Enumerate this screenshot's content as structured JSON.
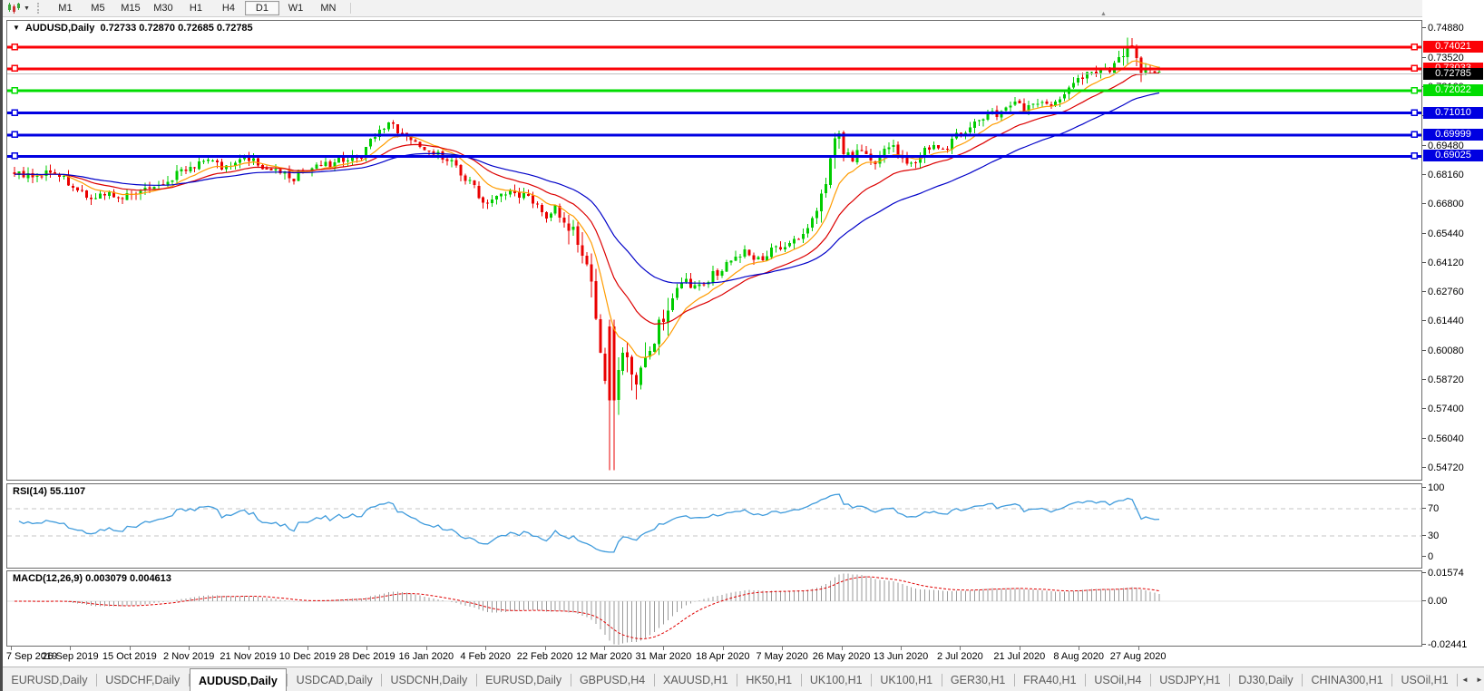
{
  "toolbar": {
    "dropdown_caret": "▼",
    "timeframes": [
      "M1",
      "M5",
      "M15",
      "M30",
      "H1",
      "H4",
      "D1",
      "W1",
      "MN"
    ],
    "active_timeframe": "D1"
  },
  "main_chart": {
    "context_arrow": "▼",
    "title": "AUDUSD,Daily",
    "ohlc_text": "0.72733 0.72870 0.72685 0.72785",
    "shift_marker": "▲",
    "price_axis_ticks": [
      "0.74880",
      "0.73520",
      "0.72160",
      "0.70840",
      "0.69480",
      "0.68160",
      "0.66800",
      "0.65440",
      "0.64120",
      "0.62760",
      "0.61440",
      "0.60080",
      "0.58720",
      "0.57400",
      "0.56040",
      "0.54720"
    ],
    "horizontal_lines": [
      {
        "price": 0.74021,
        "label": "0.74021",
        "color": "#fb0207",
        "thickness": 3
      },
      {
        "price": 0.73033,
        "label": "0.73033",
        "color": "#fb0207",
        "thickness": 3
      },
      {
        "price": 0.72022,
        "label": "0.72022",
        "color": "#00dc00",
        "thickness": 3
      },
      {
        "price": 0.7101,
        "label": "0.71010",
        "color": "#0000e1",
        "thickness": 3
      },
      {
        "price": 0.69999,
        "label": "0.69999",
        "color": "#0000e1",
        "thickness": 3
      },
      {
        "price": 0.69025,
        "label": "0.69025",
        "color": "#0000e1",
        "thickness": 3
      }
    ],
    "bid_line": {
      "price": 0.72785,
      "label": "0.72785",
      "line_color": "#c0c0c0",
      "label_bg": "#000000"
    }
  },
  "chart_data": {
    "type": "candlestick",
    "symbol": "AUDUSD",
    "timeframe": "Daily",
    "last_ohlc": {
      "open": 0.72733,
      "high": 0.7287,
      "low": 0.72685,
      "close": 0.72785
    },
    "visible_price_range": [
      0.5408,
      0.7525
    ],
    "up_color": "#00cc00",
    "down_color": "#ea0000",
    "price_path_keypoints": [
      [
        8,
        0.683
      ],
      [
        30,
        0.679
      ],
      [
        45,
        0.684
      ],
      [
        60,
        0.68
      ],
      [
        75,
        0.676
      ],
      [
        95,
        0.671
      ],
      [
        110,
        0.674
      ],
      [
        125,
        0.67
      ],
      [
        140,
        0.673
      ],
      [
        160,
        0.6745
      ],
      [
        180,
        0.68
      ],
      [
        200,
        0.684
      ],
      [
        218,
        0.687
      ],
      [
        237,
        0.6855
      ],
      [
        255,
        0.689
      ],
      [
        270,
        0.688
      ],
      [
        285,
        0.682
      ],
      [
        300,
        0.684
      ],
      [
        313,
        0.68
      ],
      [
        330,
        0.683
      ],
      [
        345,
        0.685
      ],
      [
        360,
        0.6865
      ],
      [
        375,
        0.69
      ],
      [
        391,
        0.691
      ],
      [
        402,
        0.698
      ],
      [
        415,
        0.703
      ],
      [
        425,
        0.704
      ],
      [
        435,
        0.7
      ],
      [
        448,
        0.696
      ],
      [
        462,
        0.693
      ],
      [
        475,
        0.69
      ],
      [
        490,
        0.687
      ],
      [
        505,
        0.68
      ],
      [
        520,
        0.672
      ],
      [
        528,
        0.669
      ],
      [
        540,
        0.67
      ],
      [
        555,
        0.674
      ],
      [
        570,
        0.672
      ],
      [
        582,
        0.668
      ],
      [
        593,
        0.663
      ],
      [
        603,
        0.666
      ],
      [
        615,
        0.661
      ],
      [
        625,
        0.652
      ],
      [
        635,
        0.645
      ],
      [
        645,
        0.628
      ],
      [
        655,
        0.6
      ],
      [
        665,
        0.578
      ],
      [
        672,
        0.588
      ],
      [
        678,
        0.603
      ],
      [
        685,
        0.595
      ],
      [
        692,
        0.582
      ],
      [
        698,
        0.59
      ],
      [
        706,
        0.602
      ],
      [
        715,
        0.609
      ],
      [
        724,
        0.612
      ],
      [
        735,
        0.625
      ],
      [
        745,
        0.635
      ],
      [
        755,
        0.628
      ],
      [
        768,
        0.632
      ],
      [
        780,
        0.636
      ],
      [
        790,
        0.638
      ],
      [
        800,
        0.643
      ],
      [
        812,
        0.646
      ],
      [
        822,
        0.641
      ],
      [
        835,
        0.644
      ],
      [
        845,
        0.647
      ],
      [
        855,
        0.647
      ],
      [
        865,
        0.652
      ],
      [
        878,
        0.655
      ],
      [
        890,
        0.664
      ],
      [
        900,
        0.675
      ],
      [
        908,
        0.692
      ],
      [
        915,
        0.7
      ],
      [
        922,
        0.692
      ],
      [
        930,
        0.688
      ],
      [
        938,
        0.693
      ],
      [
        947,
        0.69
      ],
      [
        955,
        0.686
      ],
      [
        962,
        0.688
      ],
      [
        973,
        0.696
      ],
      [
        980,
        0.693
      ],
      [
        990,
        0.688
      ],
      [
        1000,
        0.687
      ],
      [
        1010,
        0.693
      ],
      [
        1022,
        0.696
      ],
      [
        1032,
        0.692
      ],
      [
        1042,
        0.698
      ],
      [
        1052,
        0.701
      ],
      [
        1062,
        0.704
      ],
      [
        1072,
        0.708
      ],
      [
        1082,
        0.71
      ],
      [
        1092,
        0.708
      ],
      [
        1102,
        0.711
      ],
      [
        1112,
        0.714
      ],
      [
        1122,
        0.711
      ],
      [
        1132,
        0.715
      ],
      [
        1142,
        0.717
      ],
      [
        1152,
        0.713
      ],
      [
        1162,
        0.718
      ],
      [
        1172,
        0.723
      ],
      [
        1182,
        0.725
      ],
      [
        1192,
        0.727
      ],
      [
        1200,
        0.729
      ],
      [
        1208,
        0.731
      ],
      [
        1216,
        0.729
      ],
      [
        1224,
        0.733
      ],
      [
        1232,
        0.74
      ],
      [
        1240,
        0.739
      ],
      [
        1248,
        0.731
      ],
      [
        1256,
        0.732
      ],
      [
        1264,
        0.73
      ],
      [
        1270,
        0.7279
      ]
    ],
    "crash_low": 0.546,
    "moving_averages": [
      {
        "name": "fast-ema",
        "period": 10,
        "color": "#ff9c00"
      },
      {
        "name": "mid-ema",
        "period": 22,
        "color": "#dc0000"
      },
      {
        "name": "slow-ema",
        "period": 45,
        "color": "#0000c8"
      }
    ]
  },
  "rsi_panel": {
    "label": "RSI(14)",
    "value": "55.1107",
    "axis_ticks": [
      {
        "v": 100,
        "t": "100"
      },
      {
        "v": 70,
        "t": "70"
      },
      {
        "v": 30,
        "t": "30"
      },
      {
        "v": 0,
        "t": "0"
      }
    ],
    "dashed_levels": [
      70,
      30
    ],
    "line_color": "#3f9bdc"
  },
  "macd_panel": {
    "label": "MACD(12,26,9)",
    "values": "0.003079 0.004613",
    "axis_ticks": [
      {
        "v": 0.01574,
        "t": "0.01574"
      },
      {
        "v": 0,
        "t": "0.00"
      },
      {
        "v": -0.02441,
        "t": "-0.02441"
      }
    ],
    "histogram_color": "#9a9a9a",
    "signal_color": "#e00000"
  },
  "date_axis": {
    "labels": [
      "7 Sep 2019",
      "26 Sep 2019",
      "15 Oct 2019",
      "2 Nov 2019",
      "21 Nov 2019",
      "10 Dec 2019",
      "28 Dec 2019",
      "16 Jan 2020",
      "4 Feb 2020",
      "22 Feb 2020",
      "12 Mar 2020",
      "31 Mar 2020",
      "18 Apr 2020",
      "7 May 2020",
      "26 May 2020",
      "13 Jun 2020",
      "2 Jul 2020",
      "21 Jul 2020",
      "8 Aug 2020",
      "27 Aug 2020"
    ]
  },
  "tab_bar": {
    "tabs": [
      {
        "label": "EURUSD,Daily",
        "active": false
      },
      {
        "label": "USDCHF,Daily",
        "active": false
      },
      {
        "label": "AUDUSD,Daily",
        "active": true
      },
      {
        "label": "USDCAD,Daily",
        "active": false
      },
      {
        "label": "USDCNH,Daily",
        "active": false
      },
      {
        "label": "EURUSD,Daily",
        "active": false
      },
      {
        "label": "GBPUSD,H4",
        "active": false
      },
      {
        "label": "XAUUSD,H1",
        "active": false
      },
      {
        "label": "HK50,H1",
        "active": false
      },
      {
        "label": "UK100,H1",
        "active": false
      },
      {
        "label": "UK100,H1",
        "active": false
      },
      {
        "label": "GER30,H1",
        "active": false
      },
      {
        "label": "FRA40,H1",
        "active": false
      },
      {
        "label": "USOil,H4",
        "active": false
      },
      {
        "label": "USDJPY,H1",
        "active": false
      },
      {
        "label": "DJ30,Daily",
        "active": false
      },
      {
        "label": "CHINA300,H1",
        "active": false
      },
      {
        "label": "USOil,H1",
        "active": false
      }
    ],
    "scroll_left": "◄",
    "scroll_right": "►"
  }
}
